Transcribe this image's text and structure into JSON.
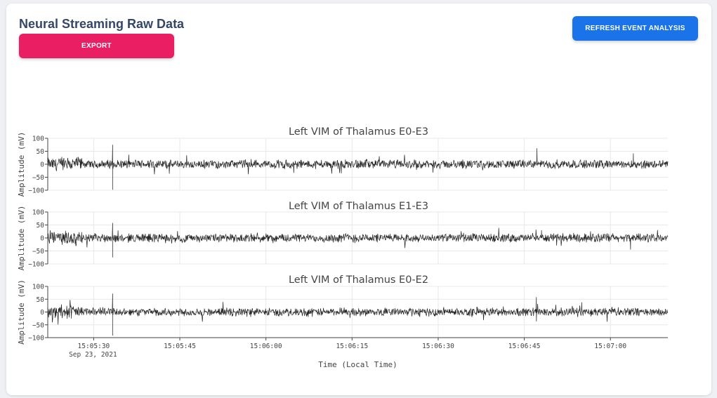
{
  "header": {
    "title": "Neural Streaming Raw Data",
    "export_label": "EXPORT",
    "refresh_label": "REFRESH EVENT ANALYSIS"
  },
  "colors": {
    "export": "#e91e63",
    "refresh": "#1a73e8",
    "trace": "#222222"
  },
  "chart_data": {
    "type": "line",
    "x_label": "Time (Local Time)",
    "y_label": "Amplitude (mV)",
    "x_range": [
      "15:05:22",
      "15:07:10"
    ],
    "x_ticks": [
      {
        "label": "15:05:30",
        "sublabel": "Sep 23, 2021",
        "seconds": 8
      },
      {
        "label": "15:05:45",
        "sublabel": "",
        "seconds": 23
      },
      {
        "label": "15:06:00",
        "sublabel": "",
        "seconds": 38
      },
      {
        "label": "15:06:15",
        "sublabel": "",
        "seconds": 53
      },
      {
        "label": "15:06:30",
        "sublabel": "",
        "seconds": 68
      },
      {
        "label": "15:06:45",
        "sublabel": "",
        "seconds": 83
      },
      {
        "label": "15:07:00",
        "sublabel": "",
        "seconds": 98
      }
    ],
    "y_ticks": [
      100,
      50,
      0,
      -50,
      -100
    ],
    "y_tick_labels": [
      "100",
      "50",
      "0",
      "−50",
      "−100"
    ],
    "ylim": [
      -100,
      100
    ],
    "grid": true,
    "series": [
      {
        "name": "Left VIM of Thalamus E0-E3",
        "spikes": [
          {
            "t": 11.3,
            "v": 75
          },
          {
            "t": 11.3,
            "v": -98
          },
          {
            "t": 85.2,
            "v": 62
          },
          {
            "t": 102,
            "v": 42
          }
        ]
      },
      {
        "name": "Left VIM of Thalamus E1-E3",
        "spikes": [
          {
            "t": 11.3,
            "v": 58
          },
          {
            "t": 11.3,
            "v": -75
          },
          {
            "t": 86,
            "v": 30
          },
          {
            "t": 101.5,
            "v": -45
          }
        ]
      },
      {
        "name": "Left VIM of Thalamus E0-E2",
        "spikes": [
          {
            "t": 11.3,
            "v": 72
          },
          {
            "t": 11.3,
            "v": -92
          },
          {
            "t": 85.1,
            "v": 58
          },
          {
            "t": 93,
            "v": 38
          }
        ]
      }
    ]
  }
}
